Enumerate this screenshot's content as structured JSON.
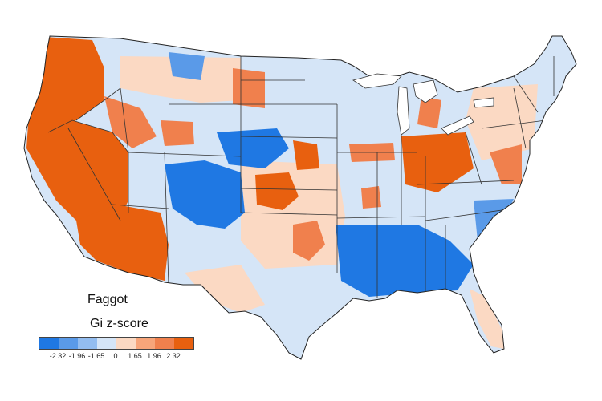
{
  "title": "Faggot",
  "subtitle": "Gi z-score",
  "legend": {
    "colors": [
      "#1f78e3",
      "#5a9ae8",
      "#93bdf0",
      "#d5e5f7",
      "#fbd9c3",
      "#f7a57a",
      "#f0804d",
      "#e8600f"
    ],
    "ticks": [
      "-2.32",
      "-1.96",
      "-1.65",
      "0",
      "1.65",
      "1.96",
      "2.32"
    ]
  },
  "map": {
    "base_color": "#d5e5f7",
    "border_color": "#333333",
    "regions": [
      {
        "name": "pacific-northwest-hotspot",
        "level": 7
      },
      {
        "name": "great-basin-hotspot",
        "level": 7
      },
      {
        "name": "southwest-hotspot",
        "level": 7
      },
      {
        "name": "rockies-coldspot",
        "level": 0
      },
      {
        "name": "northern-plains-coldspot",
        "level": 0
      },
      {
        "name": "deep-south-coldspot",
        "level": 0
      },
      {
        "name": "ohio-valley-hotspot",
        "level": 7
      },
      {
        "name": "kansas-hotspot",
        "level": 7
      },
      {
        "name": "oklahoma-hotspot",
        "level": 6
      },
      {
        "name": "mid-atlantic-hotspot",
        "level": 6
      }
    ]
  }
}
